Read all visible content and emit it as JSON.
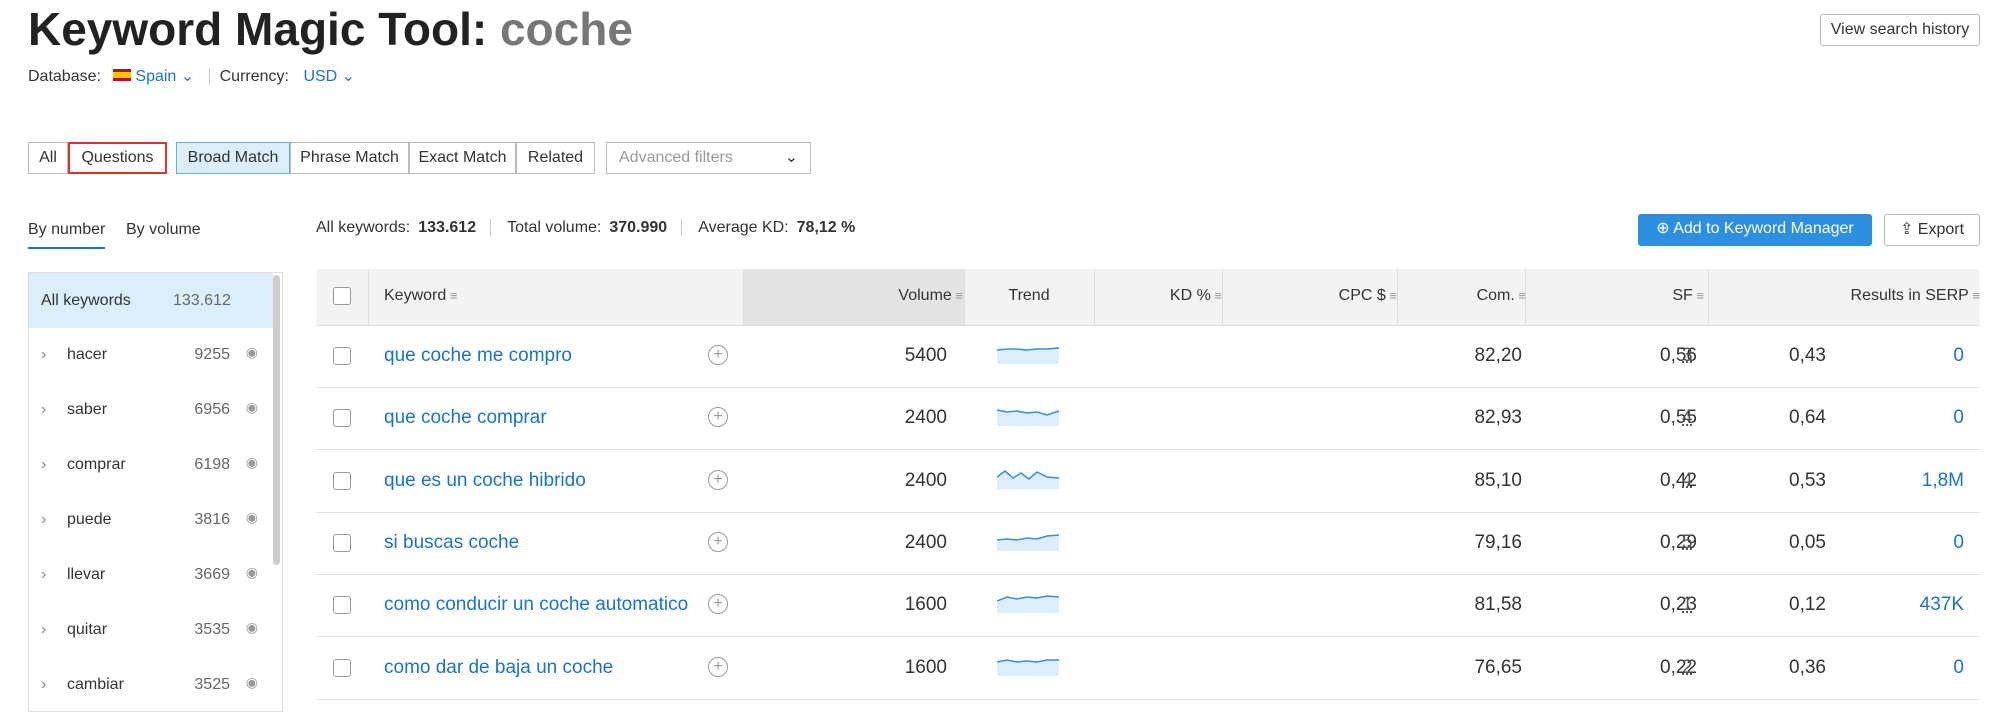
{
  "header": {
    "title": "Keyword Magic Tool:",
    "query": "coche",
    "database_label": "Database:",
    "database": "Spain",
    "currency_label": "Currency:",
    "currency": "USD",
    "history_button": "View search history"
  },
  "filters": {
    "tabs": [
      "All",
      "Questions"
    ],
    "match": [
      "Broad Match",
      "Phrase Match",
      "Exact Match",
      "Related"
    ],
    "advanced": "Advanced filters"
  },
  "sidebar": {
    "tabs": [
      "By number",
      "By volume"
    ],
    "all_label": "All keywords",
    "all_count": "133.612",
    "groups": [
      {
        "label": "hacer",
        "count": "9255"
      },
      {
        "label": "saber",
        "count": "6956"
      },
      {
        "label": "comprar",
        "count": "6198"
      },
      {
        "label": "puede",
        "count": "3816"
      },
      {
        "label": "llevar",
        "count": "3669"
      },
      {
        "label": "quitar",
        "count": "3535"
      },
      {
        "label": "cambiar",
        "count": "3525"
      }
    ]
  },
  "summary": [
    {
      "label": "All keywords:",
      "value": "133.612"
    },
    {
      "label": "Total volume:",
      "value": "370.990"
    },
    {
      "label": "Average KD:",
      "value": "78,12 %"
    }
  ],
  "buttons": {
    "add": "Add to Keyword Manager",
    "export": "Export"
  },
  "table": {
    "columns": [
      "Keyword",
      "Volume",
      "Trend",
      "KD %",
      "CPC $",
      "Com.",
      "SF",
      "Results in SERP"
    ],
    "rows": [
      [
        "que coche me compro",
        "5400",
        "82,20",
        "0,56",
        "0,43",
        "3",
        "0"
      ],
      [
        "que coche comprar",
        "2400",
        "82,93",
        "0,55",
        "0,64",
        "4",
        "0"
      ],
      [
        "que es un coche hibrido",
        "2400",
        "85,10",
        "0,42",
        "0,53",
        "4",
        "1,8M"
      ],
      [
        "si buscas coche",
        "2400",
        "79,16",
        "0,29",
        "0,05",
        "5",
        "0"
      ],
      [
        "como conducir un coche automatico",
        "1600",
        "81,58",
        "0,23",
        "0,12",
        "1",
        "437K"
      ],
      [
        "como dar de baja un coche",
        "1600",
        "76,65",
        "0,22",
        "0,36",
        "2",
        "0"
      ]
    ]
  }
}
